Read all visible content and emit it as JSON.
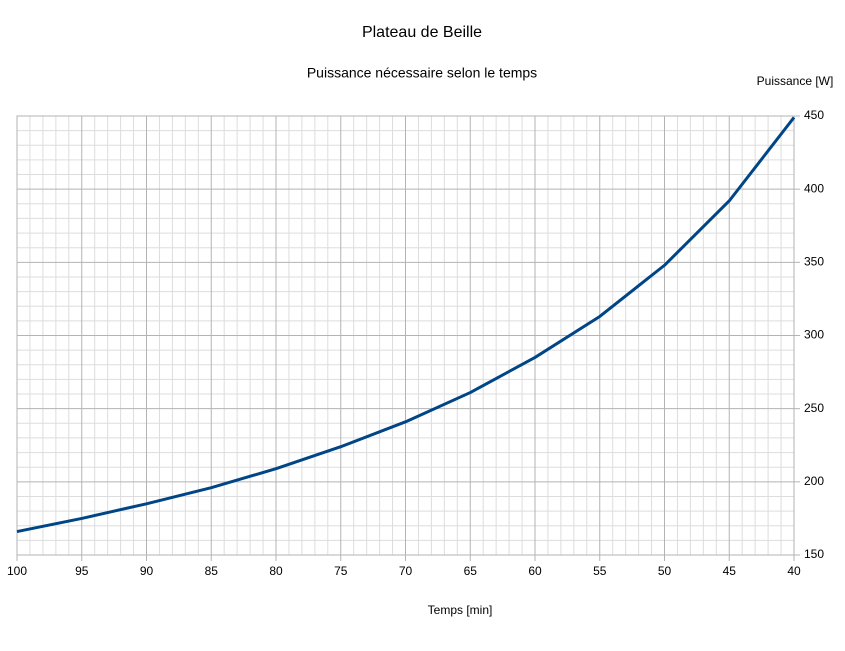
{
  "chart_data": {
    "type": "line",
    "title": "Plateau de Beille",
    "subtitle": "Puissance nécessaire selon le temps",
    "x_label": "Temps [min]",
    "y_label": "Puissance [W]",
    "x": [
      100,
      95,
      90,
      85,
      80,
      75,
      70,
      65,
      60,
      55,
      50,
      45,
      40
    ],
    "values": [
      166,
      175,
      185,
      196,
      209,
      224,
      241,
      261,
      285,
      313,
      348,
      392,
      449
    ],
    "color": "#004586",
    "xlim": [
      100,
      40
    ],
    "xticks": [
      100,
      95,
      90,
      85,
      80,
      75,
      70,
      65,
      60,
      55,
      50,
      45,
      40
    ],
    "ylim": [
      150,
      450
    ],
    "yticks": [
      150,
      200,
      250,
      300,
      350,
      400,
      450
    ],
    "y_axis_side": "right",
    "grid": true,
    "minor_grid_divisions": 5
  }
}
